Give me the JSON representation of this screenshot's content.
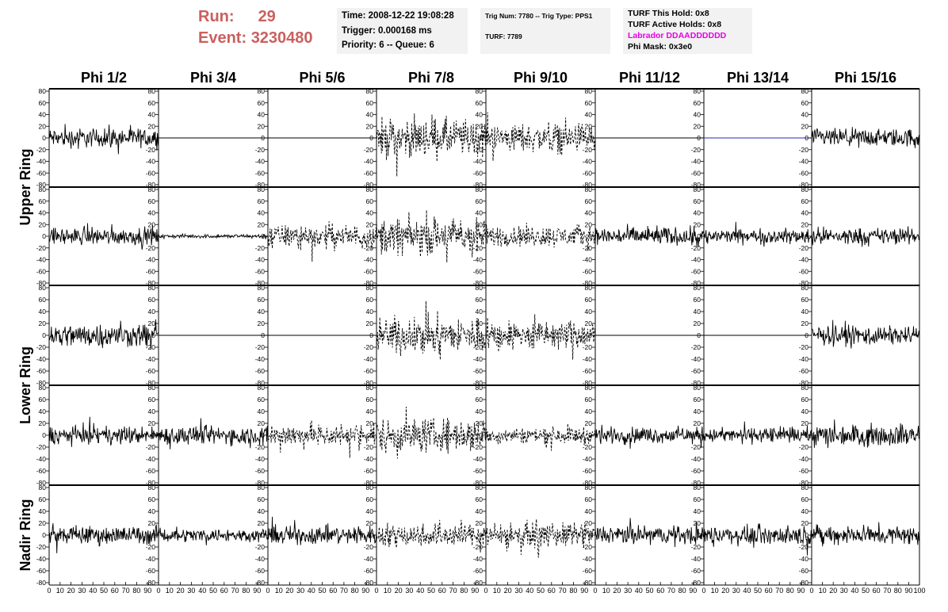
{
  "header": {
    "run_label": "Run:",
    "run_value": "29",
    "event_label": "Event:",
    "event_value": "3230480"
  },
  "time_box": {
    "time": "Time: 2008-12-22 19:08:28",
    "trigger": "Trigger: 0.000168 ms",
    "priority": "Priority: 6 -- Queue: 6"
  },
  "trig_box": {
    "trig": "Trig Num: 7780 -- Trig Type: PPS1",
    "turf": "TURF: 7789"
  },
  "turf_box": {
    "this_hold": "TURF This Hold: 0x8",
    "active_holds": "TURF Active Holds: 0x8",
    "labrador": "Labrador DDAADDDDDD",
    "phi_mask": "Phi Mask: 0x3e0"
  },
  "chart_data": {
    "type": "line",
    "columns": [
      "Phi 1/2",
      "Phi 3/4",
      "Phi 5/6",
      "Phi 7/8",
      "Phi 9/10",
      "Phi 11/12",
      "Phi 13/14",
      "Phi 15/16"
    ],
    "ring_labels": [
      "Upper Ring",
      "Lower Ring",
      "Nadir Ring"
    ],
    "ylim": [
      -80,
      80
    ],
    "xlim": [
      0,
      100
    ],
    "y_ticks": [
      80,
      60,
      40,
      20,
      0,
      -20,
      -40,
      -60,
      -80
    ],
    "x_ticks": [
      0,
      10,
      20,
      30,
      40,
      50,
      60,
      70,
      80,
      90,
      100
    ],
    "rows": [
      {
        "ring": "Upper Ring",
        "panels": [
          {
            "style": "solid",
            "amplitude": 15
          },
          {
            "style": "flat",
            "amplitude": 0
          },
          {
            "style": "flat",
            "amplitude": 0
          },
          {
            "style": "dashed",
            "amplitude": 30
          },
          {
            "style": "dashed",
            "amplitude": 22
          },
          {
            "style": "flat",
            "amplitude": 0
          },
          {
            "style": "flat-blue",
            "amplitude": 0
          },
          {
            "style": "solid",
            "amplitude": 14
          }
        ]
      },
      {
        "ring": "Upper Ring",
        "panels": [
          {
            "style": "solid",
            "amplitude": 13
          },
          {
            "style": "solid",
            "amplitude": 3
          },
          {
            "style": "dashed",
            "amplitude": 18
          },
          {
            "style": "dashed",
            "amplitude": 28
          },
          {
            "style": "dashed",
            "amplitude": 17
          },
          {
            "style": "solid",
            "amplitude": 14
          },
          {
            "style": "solid",
            "amplitude": 11
          },
          {
            "style": "solid",
            "amplitude": 13
          }
        ]
      },
      {
        "ring": "Lower Ring",
        "panels": [
          {
            "style": "solid",
            "amplitude": 18
          },
          {
            "style": "flat",
            "amplitude": 0
          },
          {
            "style": "flat",
            "amplitude": 0
          },
          {
            "style": "dashed",
            "amplitude": 28
          },
          {
            "style": "dashed",
            "amplitude": 22
          },
          {
            "style": "flat",
            "amplitude": 0
          },
          {
            "style": "flat",
            "amplitude": 0
          },
          {
            "style": "solid",
            "amplitude": 14
          }
        ]
      },
      {
        "ring": "Lower Ring",
        "panels": [
          {
            "style": "solid",
            "amplitude": 13
          },
          {
            "style": "solid",
            "amplitude": 14
          },
          {
            "style": "dashed",
            "amplitude": 18
          },
          {
            "style": "dashed",
            "amplitude": 26
          },
          {
            "style": "dashed",
            "amplitude": 12
          },
          {
            "style": "solid",
            "amplitude": 12
          },
          {
            "style": "solid",
            "amplitude": 11
          },
          {
            "style": "solid",
            "amplitude": 16
          }
        ]
      },
      {
        "ring": "Nadir Ring",
        "panels": [
          {
            "style": "solid",
            "amplitude": 14
          },
          {
            "style": "solid",
            "amplitude": 10
          },
          {
            "style": "solid",
            "amplitude": 14
          },
          {
            "style": "dashed",
            "amplitude": 18
          },
          {
            "style": "dashed",
            "amplitude": 18
          },
          {
            "style": "solid",
            "amplitude": 14
          },
          {
            "style": "solid",
            "amplitude": 14
          },
          {
            "style": "solid",
            "amplitude": 14
          }
        ]
      }
    ]
  }
}
